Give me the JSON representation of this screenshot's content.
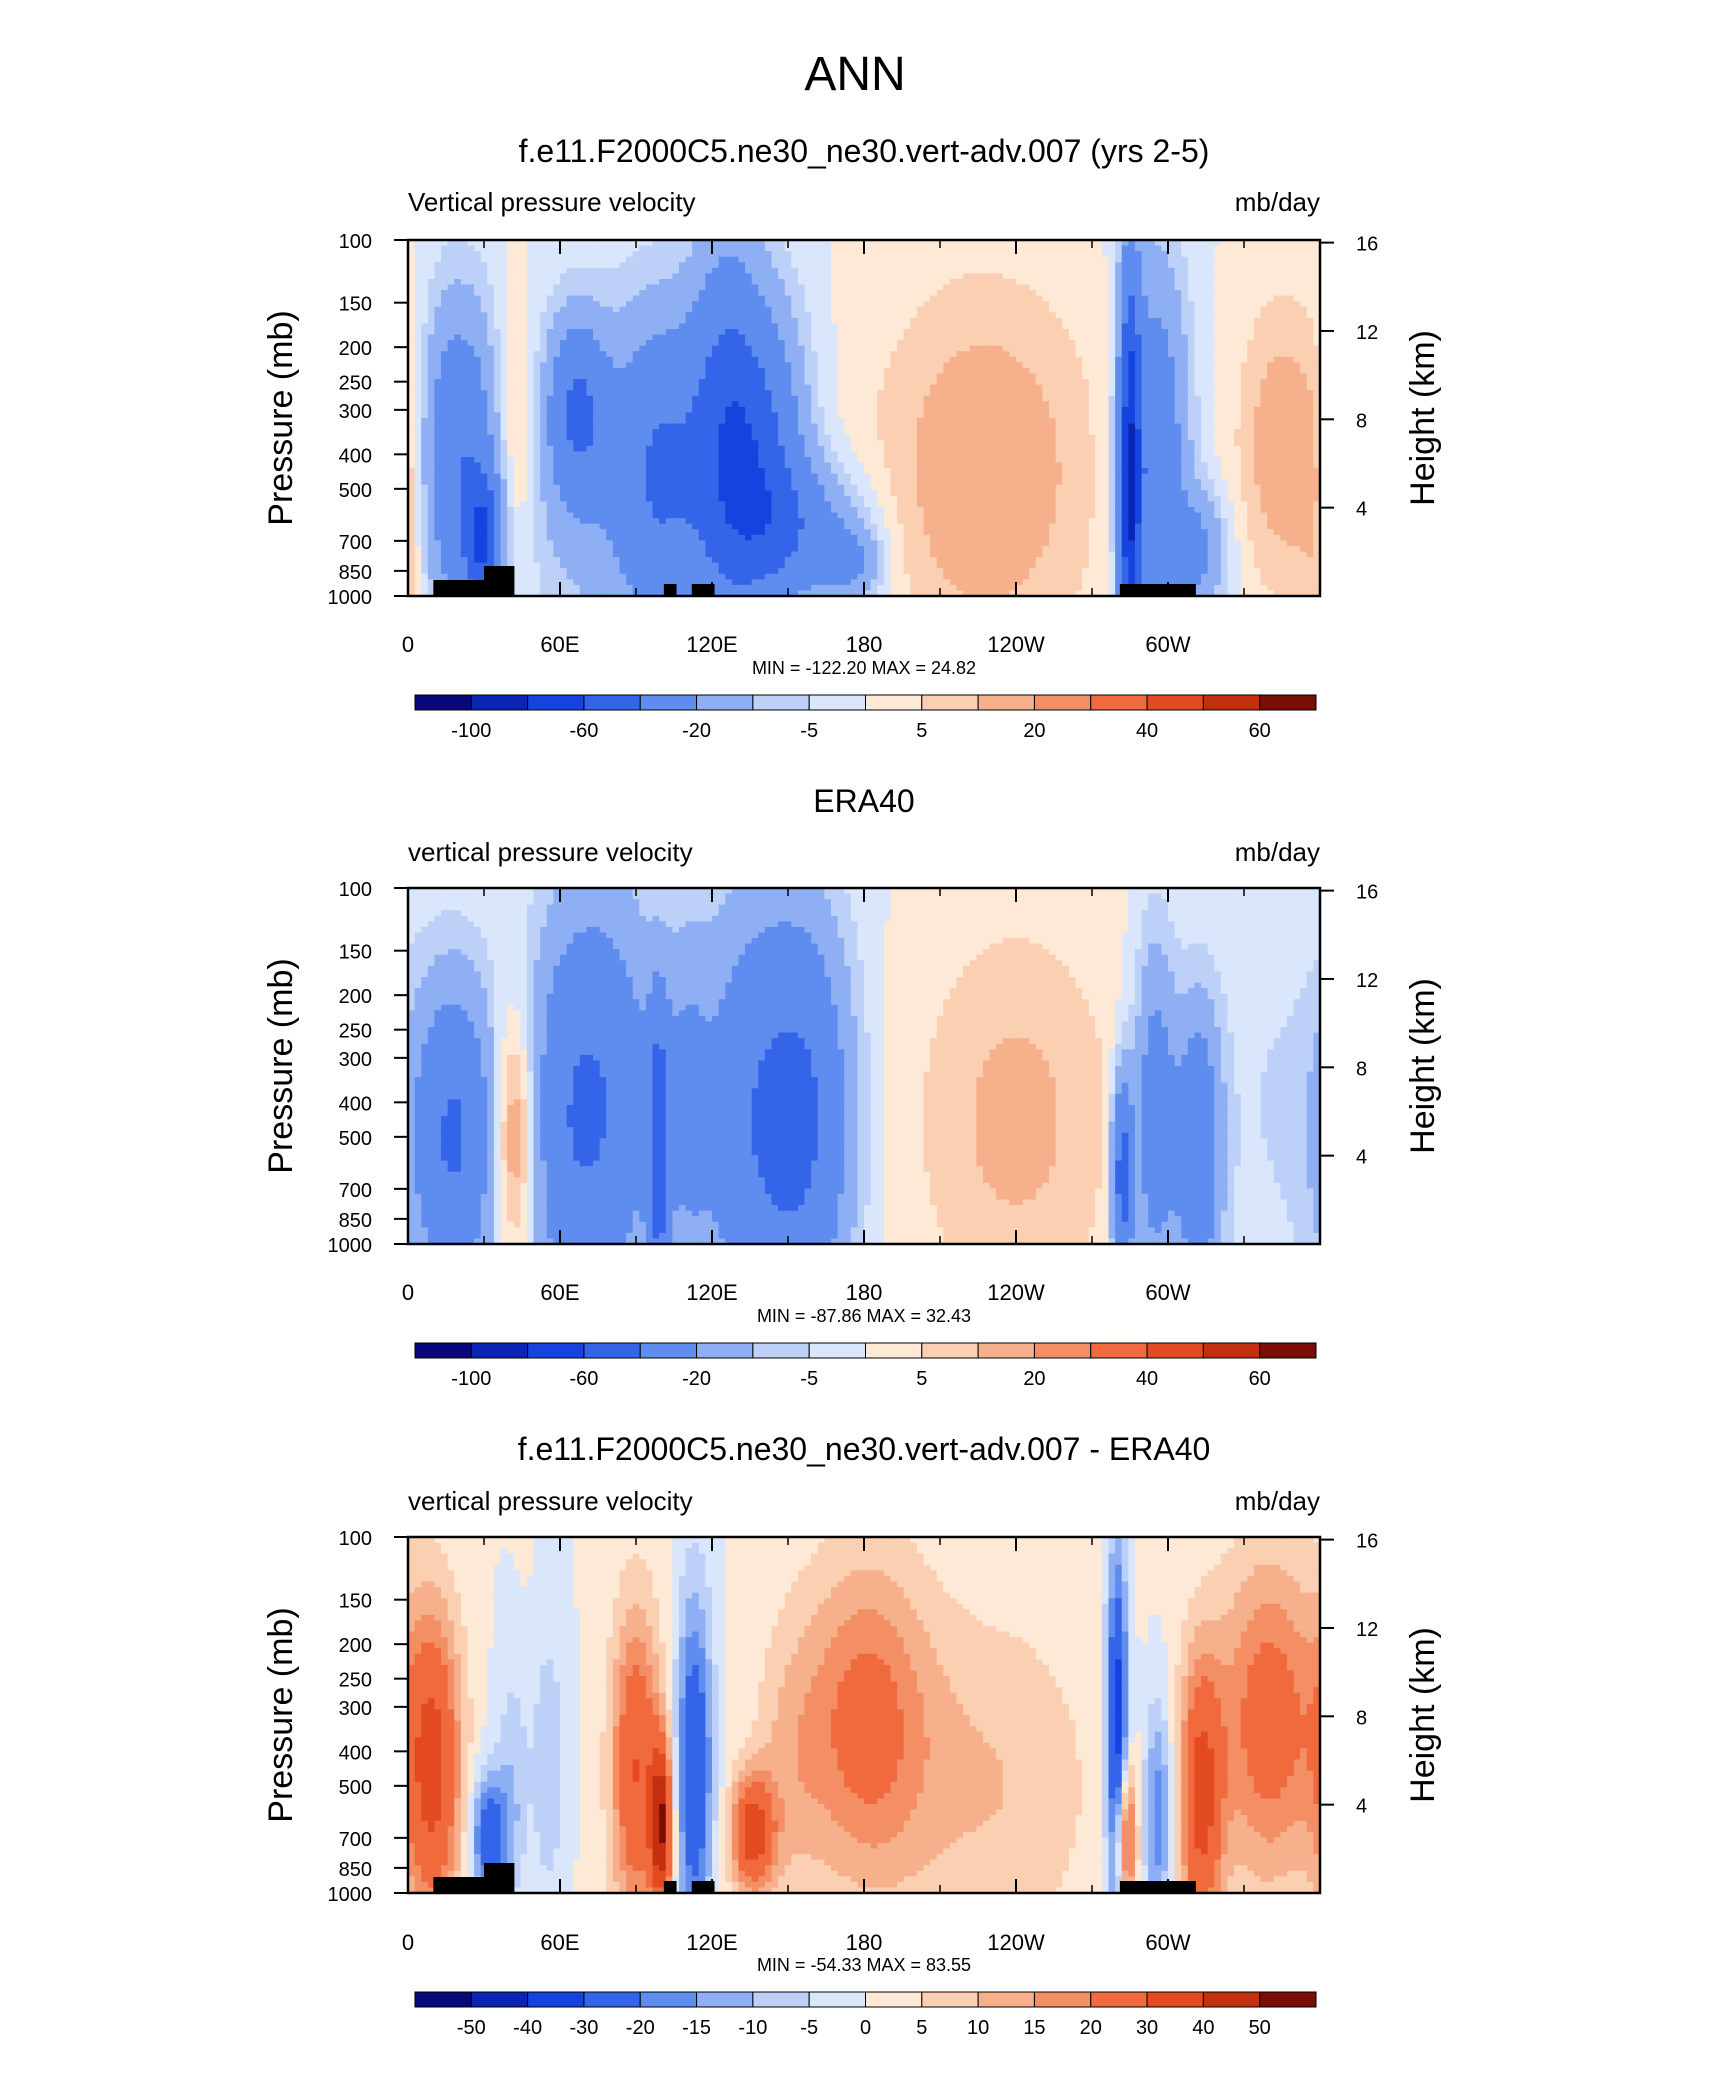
{
  "page": {
    "title": "ANN"
  },
  "colors": {
    "negative": [
      "#08087a",
      "#0a24b4",
      "#1443e0",
      "#3465e9",
      "#5f8cef",
      "#8eaff4",
      "#bcd0f8",
      "#d9e6fb"
    ],
    "positive": [
      "#fde9d6",
      "#fbcfb2",
      "#f7b08c",
      "#f48e64",
      "#f06a3e",
      "#e44a1f",
      "#c2300f",
      "#7a0d05"
    ],
    "topography": "#000000"
  },
  "chart_data": [
    {
      "type": "heatmap",
      "title": "f.e11.F2000C5.ne30_ne30.vert-adv.007 (yrs 2-5)",
      "left_label": "Vertical pressure velocity",
      "right_label": "mb/day",
      "ylabel": "Pressure (mb)",
      "y2label": "Height (km)",
      "x_ticks": [
        "0",
        "60E",
        "120E",
        "180",
        "120W",
        "60W"
      ],
      "y_ticks": [
        "100",
        "150",
        "200",
        "250",
        "300",
        "400",
        "500",
        "700",
        "850",
        "1000"
      ],
      "y2_ticks": [
        "16",
        "12",
        "8",
        "4"
      ],
      "stats": "MIN = -122.20  MAX =  24.82",
      "colorbar_labels": [
        "-100",
        "-60",
        "-20",
        "-5",
        "5",
        "20",
        "40",
        "60"
      ],
      "min": -122.2,
      "max": 24.82,
      "show_topo": true,
      "features": [
        {
          "lon": 0,
          "p": 600,
          "sx": 6,
          "sp": 500,
          "amp": 9
        },
        {
          "lon": 20,
          "p": 420,
          "sx": 11,
          "sp": 300,
          "amp": -38
        },
        {
          "lon": 30,
          "p": 700,
          "sx": 5,
          "sp": 200,
          "amp": -50
        },
        {
          "lon": 42,
          "p": 380,
          "sx": 6,
          "sp": 250,
          "amp": 12
        },
        {
          "lon": 67,
          "p": 300,
          "sx": 8,
          "sp": 120,
          "amp": -35
        },
        {
          "lon": 70,
          "p": 500,
          "sx": 20,
          "sp": 400,
          "amp": -12
        },
        {
          "lon": 100,
          "p": 450,
          "sx": 13,
          "sp": 320,
          "amp": -38
        },
        {
          "lon": 125,
          "p": 350,
          "sx": 10,
          "sp": 300,
          "amp": -38
        },
        {
          "lon": 140,
          "p": 420,
          "sx": 12,
          "sp": 300,
          "amp": -40
        },
        {
          "lon": 155,
          "p": 650,
          "sx": 18,
          "sp": 200,
          "amp": -25
        },
        {
          "lon": 175,
          "p": 820,
          "sx": 9,
          "sp": 150,
          "amp": -18
        },
        {
          "lon": 228,
          "p": 450,
          "sx": 30,
          "sp": 380,
          "amp": 16
        },
        {
          "lon": 285,
          "p": 500,
          "sx": 3,
          "sp": 500,
          "amp": -70
        },
        {
          "lon": 295,
          "p": 420,
          "sx": 9,
          "sp": 380,
          "amp": -35
        },
        {
          "lon": 312,
          "p": 750,
          "sx": 8,
          "sp": 200,
          "amp": -22
        },
        {
          "lon": 345,
          "p": 380,
          "sx": 12,
          "sp": 250,
          "amp": 15
        }
      ]
    },
    {
      "type": "heatmap",
      "title": "ERA40",
      "left_label": "vertical pressure velocity",
      "right_label": "mb/day",
      "ylabel": "Pressure (mb)",
      "y2label": "Height (km)",
      "x_ticks": [
        "0",
        "60E",
        "120E",
        "180",
        "120W",
        "60W"
      ],
      "y_ticks": [
        "100",
        "150",
        "200",
        "250",
        "300",
        "400",
        "500",
        "700",
        "850",
        "1000"
      ],
      "y2_ticks": [
        "16",
        "12",
        "8",
        "4"
      ],
      "stats": "MIN = -87.86  MAX =  32.43",
      "colorbar_labels": [
        "-100",
        "-60",
        "-20",
        "-5",
        "5",
        "20",
        "40",
        "60"
      ],
      "min": -87.86,
      "max": 32.43,
      "show_topo": false,
      "features": [
        {
          "lon": 18,
          "p": 500,
          "sx": 12,
          "sp": 350,
          "amp": -42
        },
        {
          "lon": 42,
          "p": 500,
          "sx": 6,
          "sp": 280,
          "amp": 25
        },
        {
          "lon": 62,
          "p": 450,
          "sx": 12,
          "sp": 420,
          "amp": -25
        },
        {
          "lon": 80,
          "p": 400,
          "sx": 14,
          "sp": 380,
          "amp": -30
        },
        {
          "lon": 99,
          "p": 550,
          "sx": 3,
          "sp": 350,
          "amp": -45
        },
        {
          "lon": 110,
          "p": 400,
          "sx": 6,
          "sp": 300,
          "amp": -15
        },
        {
          "lon": 140,
          "p": 450,
          "sx": 18,
          "sp": 450,
          "amp": -38
        },
        {
          "lon": 160,
          "p": 450,
          "sx": 12,
          "sp": 400,
          "amp": -22
        },
        {
          "lon": 240,
          "p": 450,
          "sx": 28,
          "sp": 400,
          "amp": 12
        },
        {
          "lon": 282,
          "p": 650,
          "sx": 3,
          "sp": 300,
          "amp": -50
        },
        {
          "lon": 295,
          "p": 450,
          "sx": 6,
          "sp": 350,
          "amp": -32
        },
        {
          "lon": 312,
          "p": 550,
          "sx": 6,
          "sp": 350,
          "amp": -38
        },
        {
          "lon": 340,
          "p": 400,
          "sx": 18,
          "sp": 450,
          "amp": -5
        }
      ]
    },
    {
      "type": "heatmap",
      "title": "f.e11.F2000C5.ne30_ne30.vert-adv.007 - ERA40",
      "left_label": "vertical pressure velocity",
      "right_label": "mb/day",
      "ylabel": "Pressure (mb)",
      "y2label": "Height (km)",
      "x_ticks": [
        "0",
        "60E",
        "120E",
        "180",
        "120W",
        "60W"
      ],
      "y_ticks": [
        "100",
        "150",
        "200",
        "250",
        "300",
        "400",
        "500",
        "700",
        "850",
        "1000"
      ],
      "y2_ticks": [
        "16",
        "12",
        "8",
        "4"
      ],
      "stats": "MIN = -54.33  MAX =  83.55",
      "colorbar_labels": [
        "-50",
        "-40",
        "-30",
        "-20",
        "-15",
        "-10",
        "-5",
        "0",
        "5",
        "10",
        "15",
        "20",
        "30",
        "40",
        "50"
      ],
      "min": -54.33,
      "max": 83.55,
      "show_topo": true,
      "features": [
        {
          "lon": 10,
          "p": 450,
          "sx": 8,
          "sp": 330,
          "amp": 32
        },
        {
          "lon": 32,
          "p": 700,
          "sx": 5,
          "sp": 200,
          "amp": -28
        },
        {
          "lon": 42,
          "p": 500,
          "sx": 5,
          "sp": 300,
          "amp": -12
        },
        {
          "lon": 50,
          "p": 500,
          "sx": 8,
          "sp": 400,
          "amp": 6
        },
        {
          "lon": 55,
          "p": 450,
          "sx": 5,
          "sp": 300,
          "amp": -14
        },
        {
          "lon": 90,
          "p": 450,
          "sx": 7,
          "sp": 330,
          "amp": 30
        },
        {
          "lon": 100,
          "p": 650,
          "sx": 3,
          "sp": 250,
          "amp": 45
        },
        {
          "lon": 113,
          "p": 450,
          "sx": 5,
          "sp": 350,
          "amp": -30
        },
        {
          "lon": 136,
          "p": 680,
          "sx": 6,
          "sp": 180,
          "amp": 35
        },
        {
          "lon": 150,
          "p": 450,
          "sx": 10,
          "sp": 300,
          "amp": 8
        },
        {
          "lon": 180,
          "p": 330,
          "sx": 18,
          "sp": 250,
          "amp": 22
        },
        {
          "lon": 230,
          "p": 500,
          "sx": 30,
          "sp": 420,
          "amp": 10
        },
        {
          "lon": 280,
          "p": 400,
          "sx": 3,
          "sp": 350,
          "amp": -40
        },
        {
          "lon": 283,
          "p": 700,
          "sx": 3,
          "sp": 250,
          "amp": 35
        },
        {
          "lon": 296,
          "p": 600,
          "sx": 4,
          "sp": 300,
          "amp": -20
        },
        {
          "lon": 313,
          "p": 550,
          "sx": 6,
          "sp": 350,
          "amp": 32
        },
        {
          "lon": 340,
          "p": 330,
          "sx": 15,
          "sp": 250,
          "amp": 25
        }
      ]
    }
  ]
}
